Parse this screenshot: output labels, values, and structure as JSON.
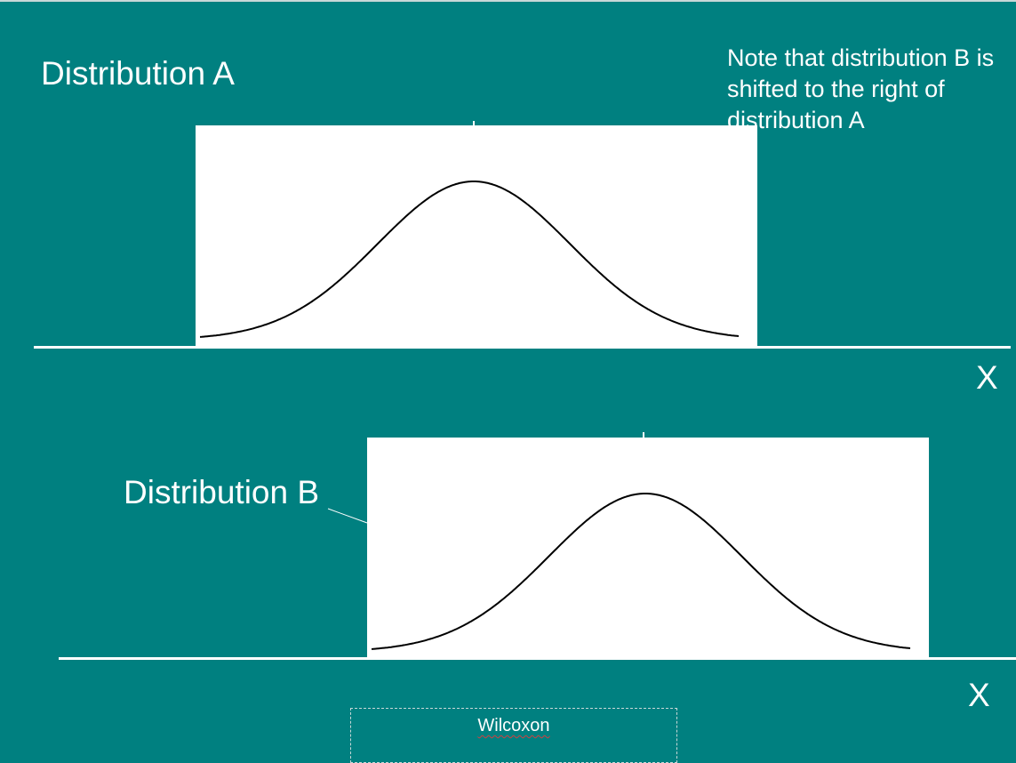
{
  "distribution_a": {
    "label": "Distribution A",
    "axis_label": "X"
  },
  "distribution_b": {
    "label": "Distribution B",
    "axis_label": "X"
  },
  "note": "Note that distribution B is shifted to the right of distribution A",
  "footer": {
    "text": "Wilcoxon"
  },
  "colors": {
    "background": "#008080",
    "panel": "#ffffff",
    "curve": "#000000",
    "text": "#ffffff"
  }
}
